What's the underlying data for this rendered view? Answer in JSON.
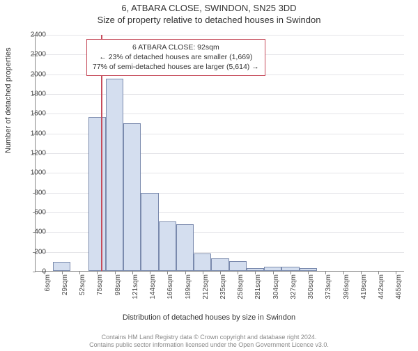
{
  "title_line1": "6, ATBARA CLOSE, SWINDON, SN25 3DD",
  "title_line2": "Size of property relative to detached houses in Swindon",
  "ylabel": "Number of detached properties",
  "xlabel": "Distribution of detached houses by size in Swindon",
  "chart": {
    "type": "histogram",
    "ylim": [
      0,
      2400
    ],
    "ytick_step": 200,
    "bar_color": "#d4deef",
    "bar_border": "#7a8aad",
    "grid_color": "#e4e4e8",
    "background": "#ffffff",
    "marker_color": "#c64b5a",
    "marker_x": 92,
    "bin_width": 23,
    "x_start": 6,
    "categories": [
      "6sqm",
      "29sqm",
      "52sqm",
      "75sqm",
      "98sqm",
      "121sqm",
      "144sqm",
      "166sqm",
      "189sqm",
      "212sqm",
      "235sqm",
      "258sqm",
      "281sqm",
      "304sqm",
      "327sqm",
      "350sqm",
      "373sqm",
      "396sqm",
      "419sqm",
      "442sqm",
      "465sqm"
    ],
    "values": [
      0,
      90,
      0,
      1560,
      1950,
      1500,
      790,
      500,
      470,
      180,
      130,
      100,
      30,
      40,
      40,
      30,
      0,
      0,
      0,
      0,
      0
    ]
  },
  "annotation": {
    "line1": "6 ATBARA CLOSE: 92sqm",
    "line2": "← 23% of detached houses are smaller (1,669)",
    "line3": "77% of semi-detached houses are larger (5,614) →"
  },
  "footer": {
    "line1": "Contains HM Land Registry data © Crown copyright and database right 2024.",
    "line2": "Contains public sector information licensed under the Open Government Licence v3.0."
  }
}
